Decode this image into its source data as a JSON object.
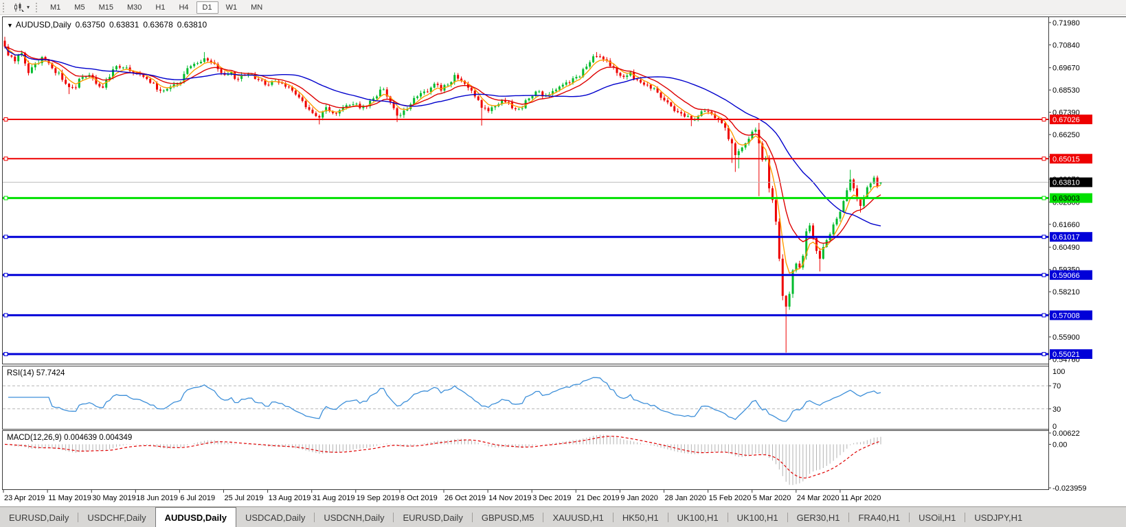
{
  "toolbar": {
    "chart_type_icon": "candlestick-chart-icon",
    "caret": "▾",
    "timeframes": [
      {
        "label": "M1",
        "active": false
      },
      {
        "label": "M5",
        "active": false
      },
      {
        "label": "M15",
        "active": false
      },
      {
        "label": "M30",
        "active": false
      },
      {
        "label": "H1",
        "active": false
      },
      {
        "label": "H4",
        "active": false
      },
      {
        "label": "D1",
        "active": true
      },
      {
        "label": "W1",
        "active": false
      },
      {
        "label": "MN",
        "active": false
      }
    ]
  },
  "symbol_header": {
    "caret": "▼",
    "title": "AUDUSD,Daily",
    "open": "0.63750",
    "high": "0.63831",
    "low": "0.63678",
    "close": "0.63810"
  },
  "price_axis": {
    "ticks": [
      "0.71980",
      "0.70840",
      "0.69670",
      "0.68530",
      "0.67390",
      "0.66250",
      "0.65110",
      "0.63970",
      "0.62800",
      "0.61660",
      "0.60490",
      "0.59350",
      "0.58210",
      "0.57070",
      "0.55900",
      "0.54760"
    ]
  },
  "hlines": [
    {
      "price": 0.67026,
      "label": "0.67026",
      "color": "#ee0000",
      "text_color": "#ffffff",
      "width": 2
    },
    {
      "price": 0.65015,
      "label": "0.65015",
      "color": "#ee0000",
      "text_color": "#ffffff",
      "width": 2
    },
    {
      "price": 0.63003,
      "label": "0.63003",
      "color": "#00e000",
      "text_color": "#000000",
      "width": 3
    },
    {
      "price": 0.61017,
      "label": "0.61017",
      "color": "#0000d8",
      "text_color": "#ffffff",
      "width": 3
    },
    {
      "price": 0.59066,
      "label": "0.59066",
      "color": "#0000d8",
      "text_color": "#ffffff",
      "width": 3
    },
    {
      "price": 0.57008,
      "label": "0.57008",
      "color": "#0000d8",
      "text_color": "#ffffff",
      "width": 3
    },
    {
      "price": 0.55021,
      "label": "0.55021",
      "color": "#0000d8",
      "text_color": "#ffffff",
      "width": 3
    }
  ],
  "current_price": {
    "value": "0.63810",
    "price": 0.6381,
    "line_color": "#bdbdbd",
    "label_bg": "#000000",
    "label_text": "#ffffff"
  },
  "date_axis": {
    "labels": [
      "23 Apr 2019",
      "11 May 2019",
      "30 May 2019",
      "18 Jun 2019",
      "6 Jul 2019",
      "25 Jul 2019",
      "13 Aug 2019",
      "31 Aug 2019",
      "19 Sep 2019",
      "8 Oct 2019",
      "26 Oct 2019",
      "14 Nov 2019",
      "3 Dec 2019",
      "21 Dec 2019",
      "9 Jan 2020",
      "28 Jan 2020",
      "15 Feb 2020",
      "5 Mar 2020",
      "24 Mar 2020",
      "11 Apr 2020"
    ]
  },
  "rsi": {
    "label": "RSI(14) 57.7424",
    "period": 14,
    "value": "57.7424",
    "axis": {
      "top": "100",
      "upper": "70",
      "lower": "30",
      "bottom": "0"
    },
    "line_color": "#3d8fd9",
    "level_color": "#b5b5b5"
  },
  "macd": {
    "label": "MACD(12,26,9) 0.004639 0.004349",
    "fast": 12,
    "slow": 26,
    "signal": 9,
    "values": "0.004639 0.004349",
    "axis_max": "0.00622",
    "axis_zero": "0.00",
    "axis_min": "-0.023959",
    "hist_color": "#b2b2b2",
    "signal_color": "#e00000"
  },
  "chart_data": {
    "type": "candlestick",
    "symbol": "AUDUSD",
    "timeframe": "Daily",
    "title": "AUDUSD,Daily",
    "x_range_dates": [
      "23 Apr 2019",
      "11 Apr 2020"
    ],
    "price_axis_range": [
      0.5453,
      0.7219
    ],
    "candle_count": 260,
    "up_color": "#00bb2c",
    "down_color": "#ee0000",
    "close_waypoints": [
      [
        0,
        0.7075
      ],
      [
        1,
        0.703
      ],
      [
        3,
        0.7
      ],
      [
        5,
        0.7042
      ],
      [
        7,
        0.694
      ],
      [
        9,
        0.6988
      ],
      [
        11,
        0.7022
      ],
      [
        13,
        0.699
      ],
      [
        15,
        0.694
      ],
      [
        17,
        0.6905
      ],
      [
        19,
        0.6868
      ],
      [
        21,
        0.6865
      ],
      [
        23,
        0.692
      ],
      [
        25,
        0.693
      ],
      [
        27,
        0.6885
      ],
      [
        29,
        0.6865
      ],
      [
        31,
        0.692
      ],
      [
        33,
        0.6975
      ],
      [
        35,
        0.6968
      ],
      [
        37,
        0.695
      ],
      [
        39,
        0.6938
      ],
      [
        41,
        0.692
      ],
      [
        43,
        0.689
      ],
      [
        45,
        0.6855
      ],
      [
        47,
        0.685
      ],
      [
        49,
        0.687
      ],
      [
        51,
        0.6885
      ],
      [
        53,
        0.6935
      ],
      [
        55,
        0.6975
      ],
      [
        57,
        0.699
      ],
      [
        59,
        0.7015
      ],
      [
        61,
        0.6995
      ],
      [
        63,
        0.696
      ],
      [
        65,
        0.693
      ],
      [
        67,
        0.6945
      ],
      [
        69,
        0.691
      ],
      [
        71,
        0.6928
      ],
      [
        73,
        0.6935
      ],
      [
        75,
        0.6905
      ],
      [
        77,
        0.688
      ],
      [
        79,
        0.6898
      ],
      [
        81,
        0.689
      ],
      [
        83,
        0.687
      ],
      [
        85,
        0.685
      ],
      [
        87,
        0.6815
      ],
      [
        89,
        0.6765
      ],
      [
        91,
        0.6735
      ],
      [
        93,
        0.6712
      ],
      [
        95,
        0.6765
      ],
      [
        97,
        0.6735
      ],
      [
        99,
        0.675
      ],
      [
        101,
        0.6775
      ],
      [
        103,
        0.678
      ],
      [
        105,
        0.676
      ],
      [
        107,
        0.677
      ],
      [
        109,
        0.681
      ],
      [
        111,
        0.6855
      ],
      [
        113,
        0.682
      ],
      [
        115,
        0.676
      ],
      [
        116,
        0.6722
      ],
      [
        118,
        0.6748
      ],
      [
        120,
        0.678
      ],
      [
        122,
        0.682
      ],
      [
        124,
        0.6845
      ],
      [
        126,
        0.6865
      ],
      [
        127,
        0.6885
      ],
      [
        129,
        0.685
      ],
      [
        131,
        0.688
      ],
      [
        133,
        0.693
      ],
      [
        135,
        0.69
      ],
      [
        137,
        0.6865
      ],
      [
        139,
        0.682
      ],
      [
        141,
        0.6762
      ],
      [
        143,
        0.6745
      ],
      [
        145,
        0.677
      ],
      [
        147,
        0.68
      ],
      [
        149,
        0.679
      ],
      [
        151,
        0.6755
      ],
      [
        153,
        0.676
      ],
      [
        155,
        0.681
      ],
      [
        157,
        0.6845
      ],
      [
        159,
        0.682
      ],
      [
        161,
        0.683
      ],
      [
        163,
        0.6855
      ],
      [
        165,
        0.688
      ],
      [
        167,
        0.689
      ],
      [
        169,
        0.692
      ],
      [
        171,
        0.696
      ],
      [
        173,
        0.6995
      ],
      [
        175,
        0.7025
      ],
      [
        177,
        0.701
      ],
      [
        179,
        0.6975
      ],
      [
        181,
        0.694
      ],
      [
        183,
        0.692
      ],
      [
        185,
        0.6945
      ],
      [
        187,
        0.6905
      ],
      [
        189,
        0.688
      ],
      [
        191,
        0.686
      ],
      [
        193,
        0.684
      ],
      [
        195,
        0.68
      ],
      [
        197,
        0.677
      ],
      [
        199,
        0.674
      ],
      [
        201,
        0.6717
      ],
      [
        203,
        0.67
      ],
      [
        205,
        0.672
      ],
      [
        207,
        0.6745
      ],
      [
        209,
        0.673
      ],
      [
        211,
        0.67
      ],
      [
        213,
        0.666
      ],
      [
        215,
        0.658
      ],
      [
        216,
        0.652
      ],
      [
        217,
        0.654
      ],
      [
        219,
        0.658
      ],
      [
        221,
        0.664
      ],
      [
        222,
        0.665
      ],
      [
        223,
        0.658
      ],
      [
        224,
        0.6495
      ],
      [
        225,
        0.6505
      ],
      [
        226,
        0.635
      ],
      [
        227,
        0.629
      ],
      [
        228,
        0.618
      ],
      [
        229,
        0.599
      ],
      [
        230,
        0.58
      ],
      [
        231,
        0.5745
      ],
      [
        232,
        0.581
      ],
      [
        233,
        0.593
      ],
      [
        234,
        0.5965
      ],
      [
        235,
        0.5945
      ],
      [
        236,
        0.6005
      ],
      [
        237,
        0.613
      ],
      [
        238,
        0.616
      ],
      [
        239,
        0.6095
      ],
      [
        240,
        0.603
      ],
      [
        241,
        0.599
      ],
      [
        242,
        0.605
      ],
      [
        243,
        0.6085
      ],
      [
        244,
        0.6115
      ],
      [
        245,
        0.6165
      ],
      [
        246,
        0.6195
      ],
      [
        247,
        0.623
      ],
      [
        248,
        0.6285
      ],
      [
        249,
        0.634
      ],
      [
        250,
        0.6395
      ],
      [
        251,
        0.635
      ],
      [
        252,
        0.6295
      ],
      [
        253,
        0.626
      ],
      [
        254,
        0.6305
      ],
      [
        255,
        0.6355
      ],
      [
        256,
        0.6375
      ],
      [
        257,
        0.6405
      ],
      [
        258,
        0.636
      ],
      [
        259,
        0.6381
      ]
    ],
    "wick_overrides": [
      {
        "i": 0,
        "open": 0.7105,
        "high": 0.7125
      },
      {
        "i": 19,
        "low": 0.6832
      },
      {
        "i": 59,
        "high": 0.7047
      },
      {
        "i": 93,
        "low": 0.6677
      },
      {
        "i": 116,
        "low": 0.6689
      },
      {
        "i": 141,
        "low": 0.6671
      },
      {
        "i": 175,
        "high": 0.7047
      },
      {
        "i": 203,
        "low": 0.6668
      },
      {
        "i": 215,
        "low": 0.648
      },
      {
        "i": 216,
        "low": 0.6434
      },
      {
        "i": 217,
        "low": 0.6452
      },
      {
        "i": 223,
        "high": 0.6685,
        "low": 0.631
      },
      {
        "i": 231,
        "low": 0.551
      },
      {
        "i": 241,
        "low": 0.5925
      },
      {
        "i": 250,
        "high": 0.6445
      },
      {
        "i": 253,
        "low": 0.6226
      },
      {
        "i": 259,
        "open": 0.6375,
        "high": 0.63831,
        "low": 0.63678,
        "close": 0.6381
      }
    ],
    "moving_averages": [
      {
        "type": "ema",
        "period": 5,
        "color": "#ff9c00"
      },
      {
        "type": "ema",
        "period": 13,
        "color": "#dd0000"
      },
      {
        "type": "sma",
        "period": 34,
        "color": "#0000cc"
      }
    ]
  },
  "tabs": {
    "active_index": 2,
    "items": [
      {
        "label": "EURUSD,Daily"
      },
      {
        "label": "USDCHF,Daily"
      },
      {
        "label": "AUDUSD,Daily"
      },
      {
        "label": "USDCAD,Daily"
      },
      {
        "label": "USDCNH,Daily"
      },
      {
        "label": "EURUSD,Daily"
      },
      {
        "label": "GBPUSD,M5"
      },
      {
        "label": "XAUUSD,H1"
      },
      {
        "label": "HK50,H1"
      },
      {
        "label": "UK100,H1"
      },
      {
        "label": "UK100,H1"
      },
      {
        "label": "GER30,H1"
      },
      {
        "label": "FRA40,H1"
      },
      {
        "label": "USOil,H1"
      },
      {
        "label": "USDJPY,H1"
      }
    ]
  }
}
